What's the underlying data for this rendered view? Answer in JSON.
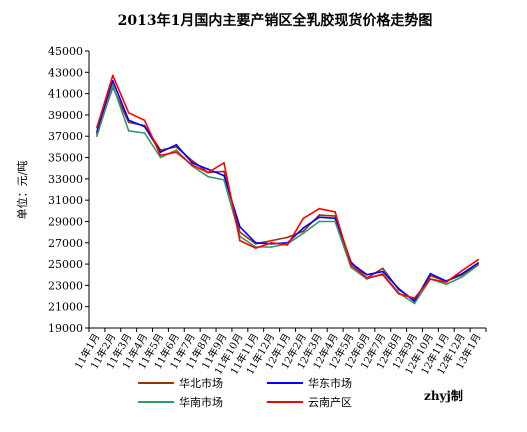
{
  "chart_data": {
    "type": "line",
    "title": "2013年1月国内主要产销区全乳胶现货价格走势图",
    "ylabel": "单位：元/吨",
    "xlabel": "",
    "ylim": [
      19000,
      45000
    ],
    "yticks": [
      19000,
      21000,
      23000,
      25000,
      27000,
      29000,
      31000,
      33000,
      35000,
      37000,
      39000,
      41000,
      43000,
      45000
    ],
    "grid": false,
    "legend_position": "bottom",
    "x": [
      "11年1月",
      "11年2月",
      "11年3月",
      "11年4月",
      "11年5月",
      "11年6月",
      "11年7月",
      "11年8月",
      "11年9月",
      "11年10月",
      "11年11月",
      "11年12月",
      "12年1月",
      "12年2月",
      "12年3月",
      "12年4月",
      "12年5月",
      "12年6月",
      "12年7月",
      "12年8月",
      "12年9月",
      "12年10月",
      "12年11月",
      "12年12月",
      "13年1月"
    ],
    "series": [
      {
        "name": "华北市场",
        "color": "#993300",
        "values": [
          37200,
          41600,
          38300,
          38000,
          35700,
          36000,
          34700,
          33600,
          33700,
          28000,
          26900,
          27200,
          27500,
          28100,
          29600,
          29500,
          25200,
          23700,
          24600,
          22600,
          21600,
          23900,
          23400,
          24000,
          25000
        ]
      },
      {
        "name": "华东市场",
        "color": "#0000ff",
        "values": [
          37400,
          42200,
          38500,
          37900,
          35500,
          36200,
          34500,
          33900,
          33300,
          28500,
          27000,
          26900,
          27000,
          28400,
          29400,
          29300,
          25100,
          24000,
          24300,
          22700,
          21500,
          24100,
          23400,
          24100,
          25100
        ]
      },
      {
        "name": "华南市场",
        "color": "#339966",
        "values": [
          37000,
          41800,
          37500,
          37300,
          35000,
          35700,
          34200,
          33200,
          32900,
          27600,
          26600,
          26600,
          26900,
          27900,
          29000,
          29000,
          24700,
          23600,
          24100,
          22300,
          21300,
          23600,
          23100,
          23800,
          24900
        ]
      },
      {
        "name": "云南产区",
        "color": "#ff0000",
        "values": [
          37800,
          42700,
          39200,
          38500,
          35200,
          35500,
          34300,
          33600,
          34500,
          27200,
          26500,
          27000,
          26800,
          29300,
          30200,
          29900,
          24900,
          23700,
          24000,
          22200,
          21800,
          23600,
          23300,
          24400,
          25400
        ]
      }
    ]
  },
  "watermark": "zhyj制"
}
